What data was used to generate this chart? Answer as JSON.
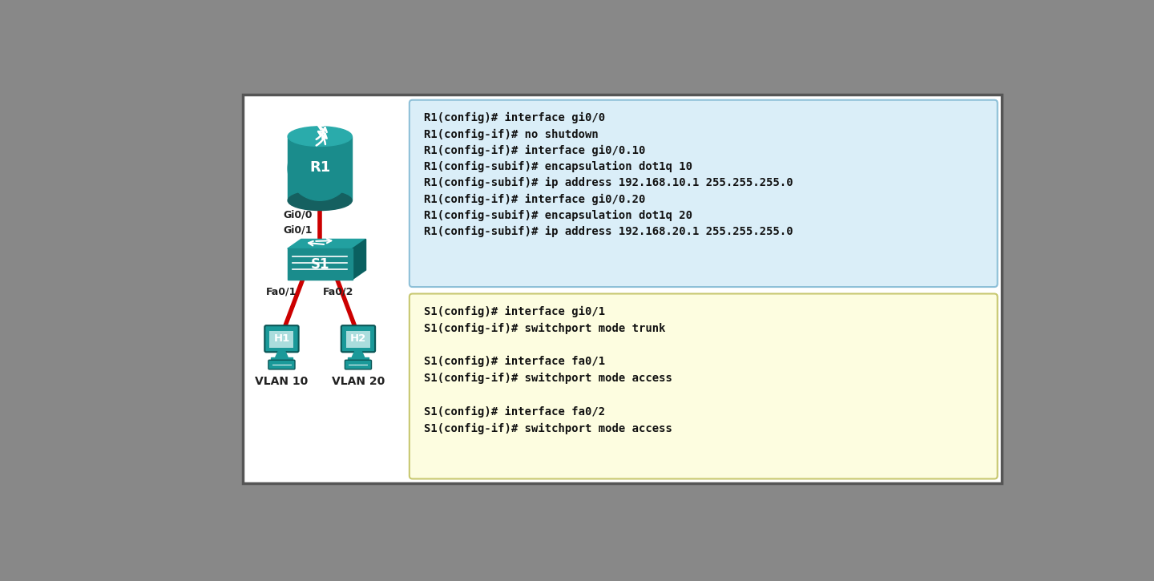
{
  "bg_color": "#888888",
  "content_bg": "#ffffff",
  "border_color": "#555555",
  "router_color": "#1a8c8c",
  "router_top_color": "#2aabab",
  "switch_color": "#1a8c8c",
  "switch_top_color": "#22a0a0",
  "host_color": "#1a9999",
  "host_screen_color": "#aadddd",
  "link_color": "#cc0000",
  "router_label": "R1",
  "switch_label": "S1",
  "host1_label": "H1",
  "host2_label": "H2",
  "vlan1_label": "VLAN 10",
  "vlan2_label": "VLAN 20",
  "gi00_label": "Gi0/0",
  "gi01_label": "Gi0/1",
  "fa01_label": "Fa0/1",
  "fa02_label": "Fa0/2",
  "router_box_bg": "#daeef8",
  "router_box_border": "#8ec0d8",
  "switch_box_bg": "#fdfde0",
  "switch_box_border": "#c8c870",
  "router_config": [
    "R1(config)# interface gi0/0",
    "R1(config-if)# no shutdown",
    "R1(config-if)# interface gi0/0.10",
    "R1(config-subif)# encapsulation dot1q 10",
    "R1(config-subif)# ip address 192.168.10.1 255.255.255.0",
    "R1(config-if)# interface gi0/0.20",
    "R1(config-subif)# encapsulation dot1q 20",
    "R1(config-subif)# ip address 192.168.20.1 255.255.255.0"
  ],
  "switch_config": [
    "S1(config)# interface gi0/1",
    "S1(config-if)# switchport mode trunk",
    "",
    "S1(config)# interface fa0/1",
    "S1(config-if)# switchport mode access",
    "",
    "S1(config)# interface fa0/2",
    "S1(config-if)# switchport mode access"
  ],
  "label_color": "#222222",
  "text_color": "#111111",
  "label_fontsize": 9,
  "text_fontsize": 10,
  "link_lw": 4
}
